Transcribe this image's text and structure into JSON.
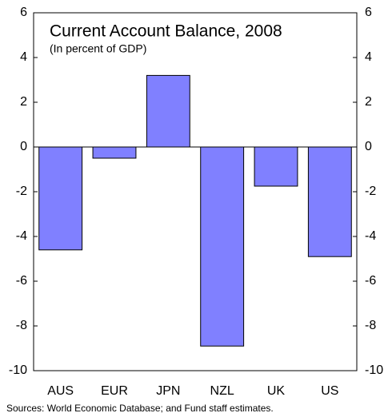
{
  "chart_data": {
    "type": "bar",
    "title": "Current Account Balance, 2008",
    "subtitle": "(In percent of GDP)",
    "categories": [
      "AUS",
      "EUR",
      "JPN",
      "NZL",
      "UK",
      "US"
    ],
    "values": [
      -4.6,
      -0.5,
      3.2,
      -8.9,
      -1.75,
      -4.9
    ],
    "color": "#8080ff",
    "ylim": [
      -10,
      6
    ],
    "yticks": [
      -10,
      -8,
      -6,
      -4,
      -2,
      0,
      2,
      4,
      6
    ],
    "note": "Sources: World Economic Database; and Fund staff estimates."
  }
}
